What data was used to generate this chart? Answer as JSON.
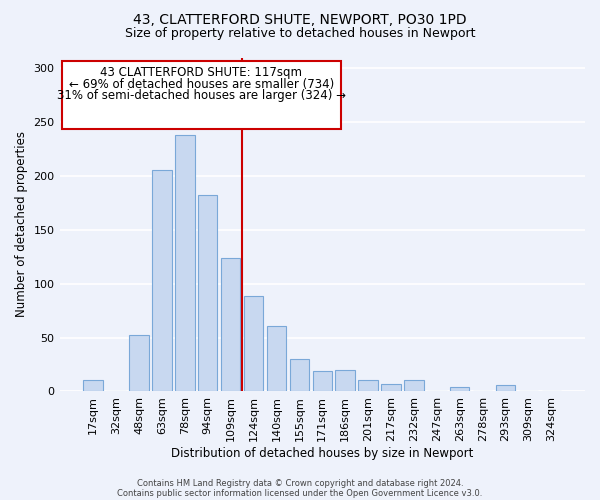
{
  "title": "43, CLATTERFORD SHUTE, NEWPORT, PO30 1PD",
  "subtitle": "Size of property relative to detached houses in Newport",
  "xlabel": "Distribution of detached houses by size in Newport",
  "ylabel": "Number of detached properties",
  "categories": [
    "17sqm",
    "32sqm",
    "48sqm",
    "63sqm",
    "78sqm",
    "94sqm",
    "109sqm",
    "124sqm",
    "140sqm",
    "155sqm",
    "171sqm",
    "186sqm",
    "201sqm",
    "217sqm",
    "232sqm",
    "247sqm",
    "263sqm",
    "278sqm",
    "293sqm",
    "309sqm",
    "324sqm"
  ],
  "values": [
    11,
    0,
    52,
    206,
    238,
    182,
    124,
    89,
    61,
    30,
    19,
    20,
    11,
    7,
    11,
    0,
    4,
    0,
    6,
    0,
    0
  ],
  "bar_color": "#c8d8f0",
  "bar_edge_color": "#7aa8d8",
  "vline_x_index": 6.5,
  "vline_color": "#cc0000",
  "annotation_title": "43 CLATTERFORD SHUTE: 117sqm",
  "annotation_line1": "← 69% of detached houses are smaller (734)",
  "annotation_line2": "31% of semi-detached houses are larger (324) →",
  "annotation_box_facecolor": "#ffffff",
  "annotation_box_edgecolor": "#cc0000",
  "ylim": [
    0,
    310
  ],
  "yticks": [
    0,
    50,
    100,
    150,
    200,
    250,
    300
  ],
  "footer1": "Contains HM Land Registry data © Crown copyright and database right 2024.",
  "footer2": "Contains public sector information licensed under the Open Government Licence v3.0.",
  "bg_color": "#eef2fb",
  "plot_bg_color": "#eef2fb",
  "grid_color": "#ffffff",
  "title_fontsize": 10,
  "subtitle_fontsize": 9,
  "xlabel_fontsize": 8.5,
  "ylabel_fontsize": 8.5,
  "tick_fontsize": 8,
  "footer_fontsize": 6,
  "ann_fontsize": 8.5
}
